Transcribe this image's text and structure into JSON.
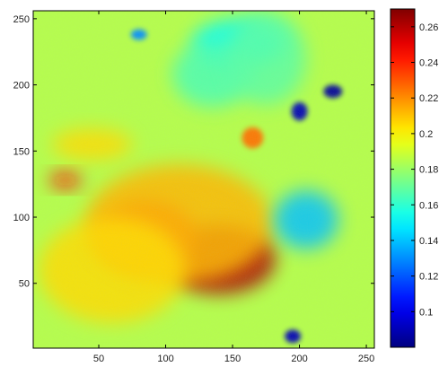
{
  "chart_data": {
    "type": "heatmap",
    "title": "",
    "xlabel": "",
    "ylabel": "",
    "xlim": [
      1,
      256
    ],
    "ylim": [
      1,
      256
    ],
    "x_ticks": [
      50,
      100,
      150,
      200,
      250
    ],
    "y_ticks": [
      50,
      100,
      150,
      200,
      250
    ],
    "x_tick_labels": [
      "50",
      "100",
      "150",
      "200",
      "250"
    ],
    "y_tick_labels": [
      "50",
      "100",
      "150",
      "200",
      "250"
    ],
    "colormap": "jet",
    "colorbar": {
      "range": [
        0.08,
        0.27
      ],
      "ticks": [
        0.1,
        0.12,
        0.14,
        0.16,
        0.18,
        0.2,
        0.22,
        0.24,
        0.26
      ],
      "tick_labels": [
        "0.1",
        "0.12",
        "0.14",
        "0.16",
        "0.18",
        "0.2",
        "0.22",
        "0.24",
        "0.26"
      ]
    },
    "background_value": 0.185,
    "features": [
      {
        "kind": "hot",
        "x": 140,
        "y": 68,
        "rx": 42,
        "ry": 26,
        "value": 0.262
      },
      {
        "kind": "hot",
        "x": 85,
        "y": 85,
        "rx": 38,
        "ry": 28,
        "value": 0.232
      },
      {
        "kind": "hot",
        "x": 110,
        "y": 95,
        "rx": 70,
        "ry": 45,
        "value": 0.212
      },
      {
        "kind": "hot",
        "x": 60,
        "y": 60,
        "rx": 55,
        "ry": 40,
        "value": 0.205
      },
      {
        "kind": "hot",
        "x": 25,
        "y": 128,
        "rx": 12,
        "ry": 6,
        "value": 0.245
      },
      {
        "kind": "hot",
        "x": 165,
        "y": 160,
        "rx": 8,
        "ry": 8,
        "value": 0.225
      },
      {
        "kind": "hot",
        "x": 45,
        "y": 155,
        "rx": 30,
        "ry": 12,
        "value": 0.205
      },
      {
        "kind": "cold",
        "x": 205,
        "y": 98,
        "rx": 24,
        "ry": 22,
        "value": 0.14
      },
      {
        "kind": "cold",
        "x": 155,
        "y": 232,
        "rx": 35,
        "ry": 18,
        "value": 0.152
      },
      {
        "kind": "cold",
        "x": 135,
        "y": 208,
        "rx": 30,
        "ry": 25,
        "value": 0.165
      },
      {
        "kind": "cold",
        "x": 225,
        "y": 195,
        "rx": 7,
        "ry": 5,
        "value": 0.085
      },
      {
        "kind": "cold",
        "x": 200,
        "y": 180,
        "rx": 6,
        "ry": 7,
        "value": 0.09
      },
      {
        "kind": "cold",
        "x": 195,
        "y": 10,
        "rx": 6,
        "ry": 5,
        "value": 0.09
      },
      {
        "kind": "cold",
        "x": 80,
        "y": 238,
        "rx": 6,
        "ry": 4,
        "value": 0.13
      },
      {
        "kind": "cold",
        "x": 175,
        "y": 220,
        "rx": 30,
        "ry": 35,
        "value": 0.168
      }
    ]
  }
}
